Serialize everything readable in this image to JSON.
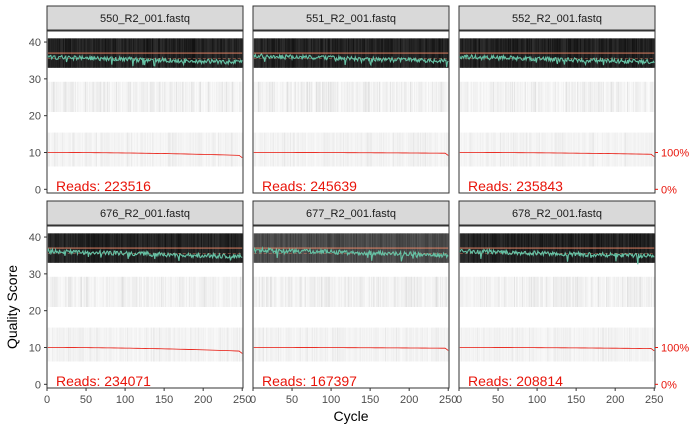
{
  "chart_data": {
    "type": "faceted-quality-profile",
    "title": "",
    "xlabel": "Cycle",
    "ylabel": "Quality Score",
    "xlim": [
      0,
      251
    ],
    "ylim": [
      -1,
      43
    ],
    "x_ticks": [
      0,
      50,
      100,
      150,
      200,
      250
    ],
    "y_ticks": [
      0,
      10,
      20,
      30,
      40
    ],
    "secondary_axis": {
      "ticks": [
        "100%",
        "0%"
      ],
      "color": "#e8140a"
    },
    "colors": {
      "mean_quality": "#66c2a5",
      "median_quality": "#f58d6b",
      "quartile_lines": "#f58d6b",
      "cumulative_reads": "#e8140a",
      "reads_text": "#e8140a",
      "strip_background": "#d9d9d9"
    },
    "facets": [
      {
        "name": "550_R2_001.fastq",
        "reads_label": "Reads:  223516",
        "mean_quality_mean": 35.0,
        "cumulative_end_pct": 0.92
      },
      {
        "name": "551_R2_001.fastq",
        "reads_label": "Reads:  245639",
        "mean_quality_mean": 35.3,
        "cumulative_end_pct": 0.98
      },
      {
        "name": "552_R2_001.fastq",
        "reads_label": "Reads:  235843",
        "mean_quality_mean": 35.1,
        "cumulative_end_pct": 0.95
      },
      {
        "name": "676_R2_001.fastq",
        "reads_label": "Reads:  234071",
        "mean_quality_mean": 35.2,
        "cumulative_end_pct": 0.9
      },
      {
        "name": "677_R2_001.fastq",
        "reads_label": "Reads:  167397",
        "mean_quality_mean": 35.6,
        "cumulative_end_pct": 0.98
      },
      {
        "name": "678_R2_001.fastq",
        "reads_label": "Reads:  208814",
        "mean_quality_mean": 35.3,
        "cumulative_end_pct": 0.97
      }
    ]
  }
}
